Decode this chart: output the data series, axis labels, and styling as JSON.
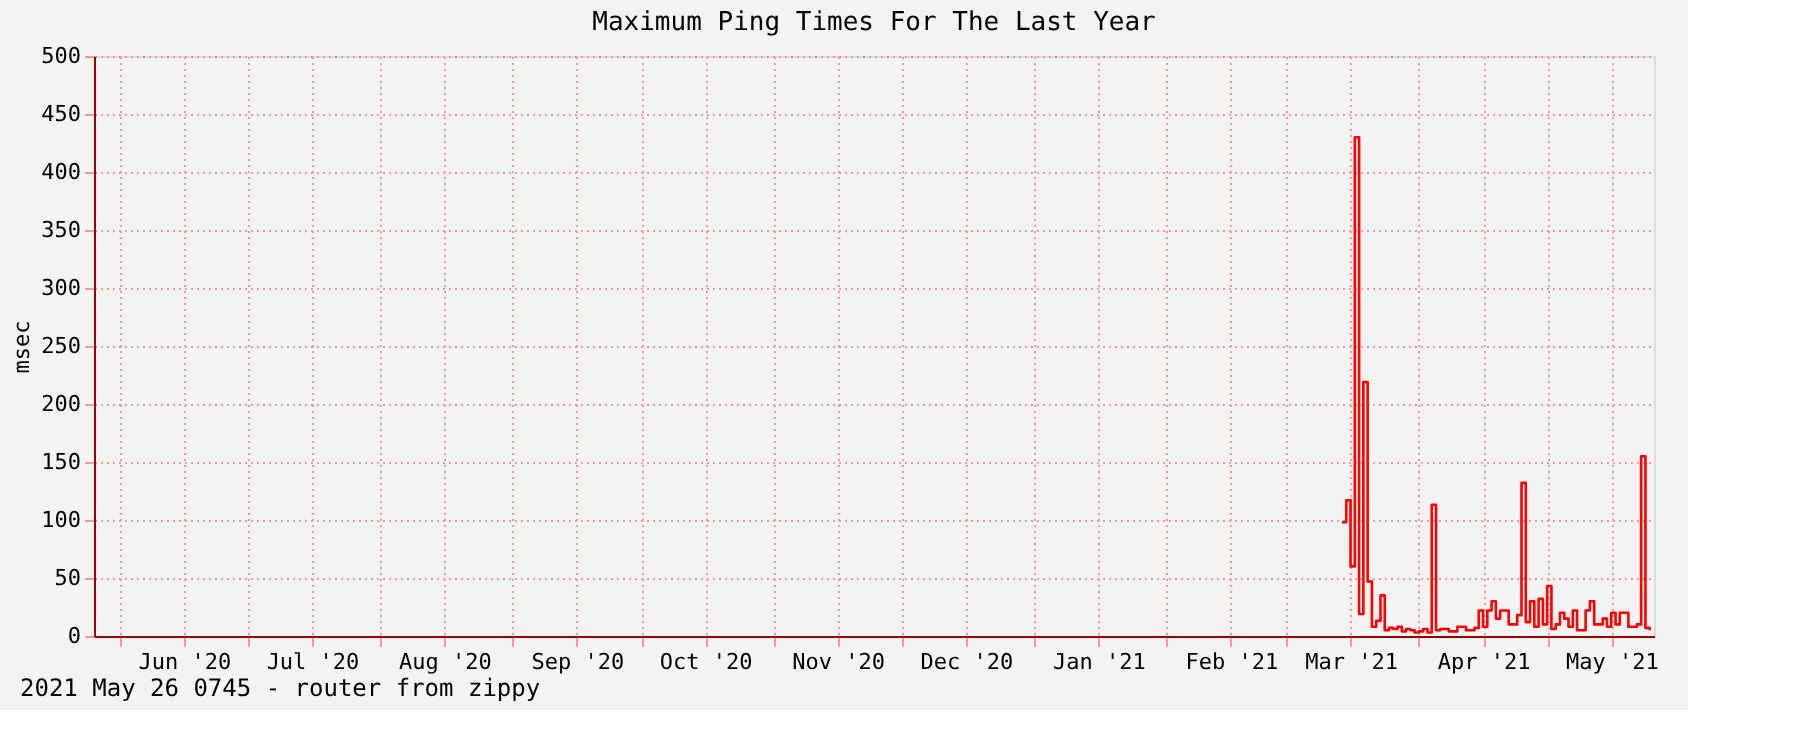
{
  "chart_data": {
    "type": "step",
    "title": "Maximum Ping Times For The Last Year",
    "ylabel": "msec",
    "annotations": [
      "2021 May 26 0745  -  router from zippy"
    ],
    "xlim": [
      "2020-05-26",
      "2021-05-26"
    ],
    "xticks": [
      {
        "value": "2020-06-01",
        "label": null
      },
      {
        "value": "2020-06-16",
        "label": "Jun '20"
      },
      {
        "value": "2020-07-01",
        "label": null
      },
      {
        "value": "2020-07-16",
        "label": "Jul '20"
      },
      {
        "value": "2020-08-01",
        "label": null
      },
      {
        "value": "2020-08-16",
        "label": "Aug '20"
      },
      {
        "value": "2020-09-01",
        "label": null
      },
      {
        "value": "2020-09-16",
        "label": "Sep '20"
      },
      {
        "value": "2020-10-01",
        "label": null
      },
      {
        "value": "2020-10-16",
        "label": "Oct '20"
      },
      {
        "value": "2020-11-01",
        "label": null
      },
      {
        "value": "2020-11-16",
        "label": "Nov '20"
      },
      {
        "value": "2020-12-01",
        "label": null
      },
      {
        "value": "2020-12-16",
        "label": "Dec '20"
      },
      {
        "value": "2021-01-01",
        "label": null
      },
      {
        "value": "2021-01-16",
        "label": "Jan '21"
      },
      {
        "value": "2021-02-01",
        "label": null
      },
      {
        "value": "2021-02-16",
        "label": "Feb '21"
      },
      {
        "value": "2021-03-01",
        "label": null
      },
      {
        "value": "2021-03-16",
        "label": "Mar '21"
      },
      {
        "value": "2021-04-01",
        "label": null
      },
      {
        "value": "2021-04-16",
        "label": "Apr '21"
      },
      {
        "value": "2021-05-01",
        "label": null
      },
      {
        "value": "2021-05-16",
        "label": "May '21"
      }
    ],
    "ylim": [
      0,
      500
    ],
    "yticks": [
      0,
      50,
      100,
      150,
      200,
      250,
      300,
      350,
      400,
      450,
      500
    ],
    "grid": true,
    "line_style": "solid",
    "x": [
      "2021-03-14",
      "2021-03-15",
      "2021-03-16",
      "2021-03-17",
      "2021-03-18",
      "2021-03-19",
      "2021-03-20",
      "2021-03-21",
      "2021-03-22",
      "2021-03-23",
      "2021-03-24",
      "2021-03-25",
      "2021-03-26",
      "2021-03-27",
      "2021-03-28",
      "2021-03-29",
      "2021-03-30",
      "2021-03-31",
      "2021-04-01",
      "2021-04-02",
      "2021-04-03",
      "2021-04-04",
      "2021-04-05",
      "2021-04-06",
      "2021-04-08",
      "2021-04-10",
      "2021-04-12",
      "2021-04-14",
      "2021-04-15",
      "2021-04-16",
      "2021-04-17",
      "2021-04-18",
      "2021-04-19",
      "2021-04-20",
      "2021-04-22",
      "2021-04-24",
      "2021-04-25",
      "2021-04-26",
      "2021-04-27",
      "2021-04-28",
      "2021-04-29",
      "2021-04-30",
      "2021-05-01",
      "2021-05-02",
      "2021-05-03",
      "2021-05-04",
      "2021-05-05",
      "2021-05-06",
      "2021-05-07",
      "2021-05-08",
      "2021-05-10",
      "2021-05-11",
      "2021-05-12",
      "2021-05-14",
      "2021-05-15",
      "2021-05-16",
      "2021-05-17",
      "2021-05-18",
      "2021-05-20",
      "2021-05-22",
      "2021-05-23",
      "2021-05-24",
      "2021-05-25"
    ],
    "series": [
      {
        "color": "#ff0000",
        "values": [
          98,
          117,
          60,
          430,
          19,
          219,
          47,
          8,
          13,
          35,
          5,
          7,
          6,
          8,
          4,
          6,
          5,
          3,
          4,
          6,
          3,
          113,
          5,
          6,
          4,
          8,
          5,
          7,
          22,
          8,
          22,
          30,
          15,
          22,
          10,
          18,
          132,
          12,
          30,
          8,
          32,
          10,
          43,
          6,
          10,
          20,
          15,
          8,
          22,
          5,
          22,
          30,
          10,
          15,
          8,
          20,
          10,
          20,
          8,
          10,
          155,
          7,
          5
        ]
      }
    ]
  }
}
